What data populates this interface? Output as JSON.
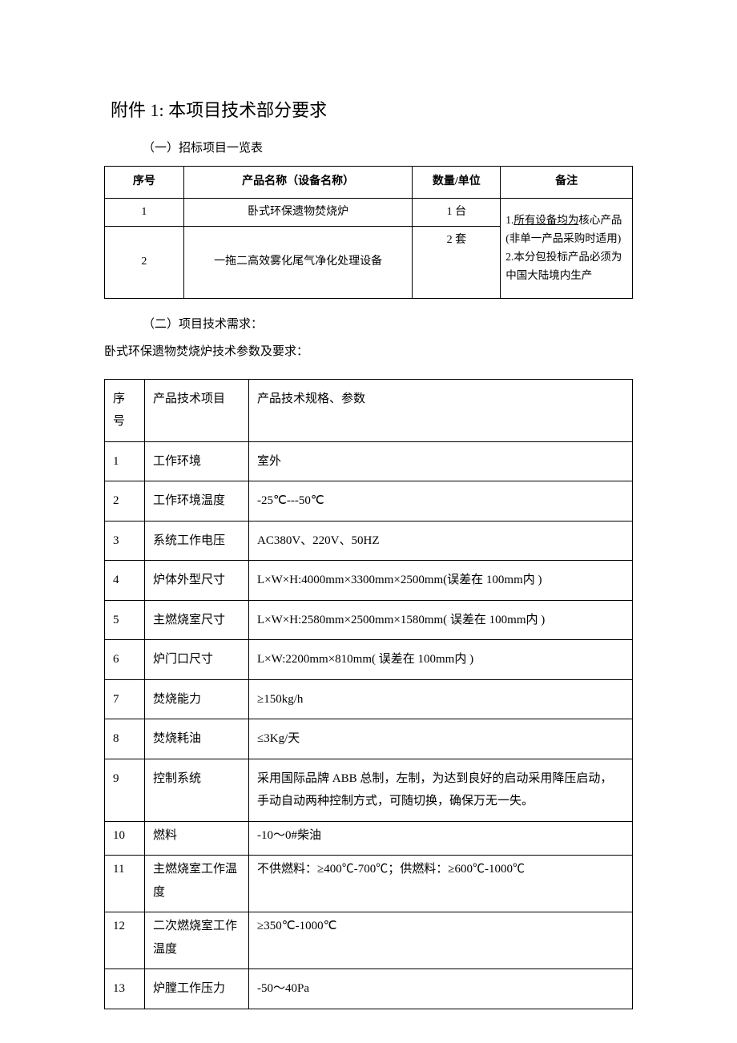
{
  "title": "附件 1:  本项目技术部分要求",
  "section1": {
    "header": "（一）招标项目一览表",
    "columns": {
      "seq": "序号",
      "name": "产品名称（设备名称）",
      "qty": "数量/单位",
      "note": "备注"
    },
    "rows": [
      {
        "seq": "1",
        "name": "卧式环保遗物焚烧炉",
        "qty": "1 台"
      },
      {
        "seq": "2",
        "name": "一拖二高效雾化尾气净化处理设备",
        "qty": "2 套"
      }
    ],
    "note_line1a": "1.",
    "note_line1b": "所有设备均为",
    "note_line2": "核心产品(非单一产品采购时适用)",
    "note_line3": "2.本分包投标产品必须为中国大陆境内生产"
  },
  "section2": {
    "header": "（二）项目技术需求：",
    "subtitle": "卧式环保遗物焚烧炉技术参数及要求：",
    "columns": {
      "seq": "序号",
      "item": "产品技术项目",
      "spec": "产品技术规格、参数"
    },
    "rows": [
      {
        "seq": "1",
        "item": "工作环境",
        "spec": "室外"
      },
      {
        "seq": "2",
        "item": "工作环境温度",
        "spec": "-25℃---50℃"
      },
      {
        "seq": "3",
        "item": "系统工作电压",
        "spec": "AC380V、220V、50HZ"
      },
      {
        "seq": "4",
        "item": "炉体外型尺寸",
        "spec": "L×W×H:4000mm×3300mm×2500mm(误差在 100mm内   )"
      },
      {
        "seq": "5",
        "item": "主燃烧室尺寸",
        "spec": "L×W×H:2580mm×2500mm×1580mm( 误差在 100mm内 )"
      },
      {
        "seq": "6",
        "item": "炉门口尺寸",
        "spec": "L×W:2200mm×810mm( 误差在 100mm内    )"
      },
      {
        "seq": "7",
        "item": "焚烧能力",
        "spec": "≥150kg/h"
      },
      {
        "seq": "8",
        "item": "焚烧耗油",
        "spec": "≤3Kg/天"
      },
      {
        "seq": "9",
        "item": "控制系统",
        "spec": "采用国际品牌 ABB 总制，左制，为达到良好的启动采用降压启动，\n手动自动两种控制方式，可随切换，确保万无一失。"
      },
      {
        "seq": "10",
        "item": "燃料",
        "spec": "-10～0#柴油"
      },
      {
        "seq": "11",
        "item": "主燃烧室工作温度",
        "spec": "不供燃料：≥400℃-700℃；供燃料：≥600℃-1000℃"
      },
      {
        "seq": "12",
        "item": "二次燃烧室工作温度",
        "spec": "≥350℃-1000℃"
      },
      {
        "seq": "13",
        "item": "炉膛工作压力",
        "spec": "-50～40Pa"
      }
    ]
  },
  "colors": {
    "text": "#000000",
    "background": "#ffffff",
    "border": "#000000"
  }
}
